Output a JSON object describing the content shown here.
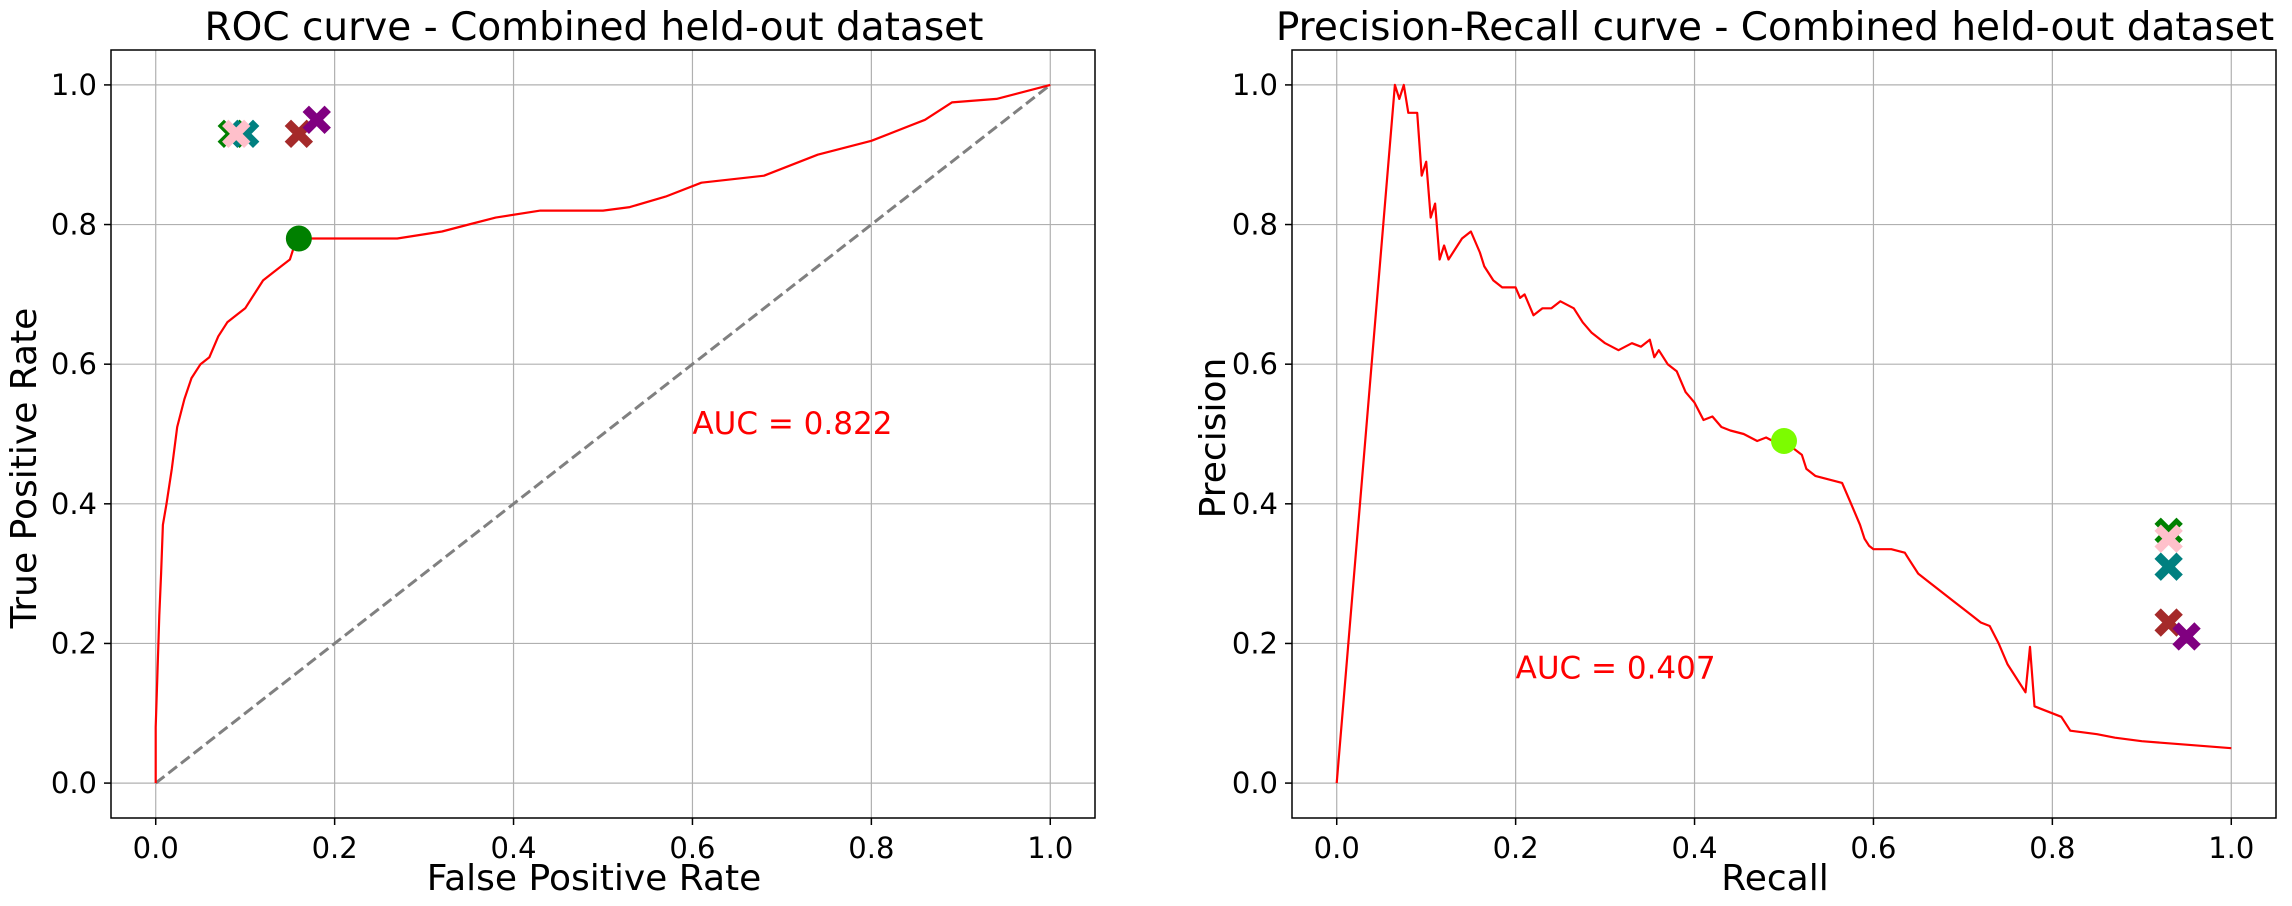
{
  "chart_data": [
    {
      "type": "line",
      "title": "ROC curve - Combined held-out dataset",
      "xlabel": "False Positive Rate",
      "ylabel": "True Positive Rate",
      "xlim": [
        -0.05,
        1.05
      ],
      "ylim": [
        -0.05,
        1.05
      ],
      "xticks": [
        0.0,
        0.2,
        0.4,
        0.6,
        0.8,
        1.0
      ],
      "yticks": [
        0.0,
        0.2,
        0.4,
        0.6,
        0.8,
        1.0
      ],
      "tick_labels": [
        "0.0",
        "0.2",
        "0.4",
        "0.6",
        "0.8",
        "1.0"
      ],
      "grid": true,
      "curve_color": "#ff0000",
      "curve": [
        [
          0.0,
          0.0
        ],
        [
          0.0,
          0.08
        ],
        [
          0.002,
          0.16
        ],
        [
          0.004,
          0.24
        ],
        [
          0.006,
          0.3
        ],
        [
          0.008,
          0.37
        ],
        [
          0.012,
          0.4
        ],
        [
          0.018,
          0.45
        ],
        [
          0.024,
          0.51
        ],
        [
          0.032,
          0.55
        ],
        [
          0.04,
          0.58
        ],
        [
          0.05,
          0.6
        ],
        [
          0.06,
          0.61
        ],
        [
          0.07,
          0.64
        ],
        [
          0.08,
          0.66
        ],
        [
          0.09,
          0.67
        ],
        [
          0.1,
          0.68
        ],
        [
          0.11,
          0.7
        ],
        [
          0.12,
          0.72
        ],
        [
          0.13,
          0.73
        ],
        [
          0.14,
          0.74
        ],
        [
          0.15,
          0.75
        ],
        [
          0.155,
          0.77
        ],
        [
          0.16,
          0.78
        ],
        [
          0.2,
          0.78
        ],
        [
          0.27,
          0.78
        ],
        [
          0.32,
          0.79
        ],
        [
          0.35,
          0.8
        ],
        [
          0.38,
          0.81
        ],
        [
          0.43,
          0.82
        ],
        [
          0.5,
          0.82
        ],
        [
          0.53,
          0.825
        ],
        [
          0.57,
          0.84
        ],
        [
          0.61,
          0.86
        ],
        [
          0.68,
          0.87
        ],
        [
          0.74,
          0.9
        ],
        [
          0.8,
          0.92
        ],
        [
          0.86,
          0.95
        ],
        [
          0.89,
          0.975
        ],
        [
          0.94,
          0.98
        ],
        [
          1.0,
          1.0
        ]
      ],
      "diagonal": {
        "points": [
          [
            0,
            0
          ],
          [
            1,
            1
          ]
        ],
        "color": "#808080",
        "style": "dashed"
      },
      "threshold_point": {
        "x": 0.16,
        "y": 0.78,
        "color": "#008000"
      },
      "markers": [
        {
          "x": 0.085,
          "y": 0.93,
          "color": "#008000"
        },
        {
          "x": 0.1,
          "y": 0.93,
          "color": "#008080"
        },
        {
          "x": 0.09,
          "y": 0.93,
          "color": "#ffc0cb"
        },
        {
          "x": 0.16,
          "y": 0.93,
          "color": "#a52a2a"
        },
        {
          "x": 0.18,
          "y": 0.95,
          "color": "#800080"
        }
      ],
      "annotation": {
        "text": "AUC = 0.822",
        "x": 0.6,
        "y": 0.5,
        "color": "#ff0000"
      }
    },
    {
      "type": "line",
      "title": "Precision-Recall curve - Combined held-out dataset",
      "xlabel": "Recall",
      "ylabel": "Precision",
      "xlim": [
        -0.05,
        1.05
      ],
      "ylim": [
        -0.05,
        1.05
      ],
      "xticks": [
        0.0,
        0.2,
        0.4,
        0.6,
        0.8,
        1.0
      ],
      "yticks": [
        0.0,
        0.2,
        0.4,
        0.6,
        0.8,
        1.0
      ],
      "tick_labels": [
        "0.0",
        "0.2",
        "0.4",
        "0.6",
        "0.8",
        "1.0"
      ],
      "grid": true,
      "curve_color": "#ff0000",
      "curve": [
        [
          0.0,
          0.0
        ],
        [
          0.065,
          1.0
        ],
        [
          0.07,
          0.98
        ],
        [
          0.075,
          1.0
        ],
        [
          0.08,
          0.96
        ],
        [
          0.09,
          0.96
        ],
        [
          0.095,
          0.87
        ],
        [
          0.1,
          0.89
        ],
        [
          0.105,
          0.81
        ],
        [
          0.11,
          0.83
        ],
        [
          0.115,
          0.75
        ],
        [
          0.12,
          0.77
        ],
        [
          0.125,
          0.75
        ],
        [
          0.135,
          0.77
        ],
        [
          0.14,
          0.78
        ],
        [
          0.15,
          0.79
        ],
        [
          0.16,
          0.76
        ],
        [
          0.165,
          0.74
        ],
        [
          0.175,
          0.72
        ],
        [
          0.185,
          0.71
        ],
        [
          0.2,
          0.71
        ],
        [
          0.205,
          0.695
        ],
        [
          0.21,
          0.7
        ],
        [
          0.22,
          0.67
        ],
        [
          0.23,
          0.68
        ],
        [
          0.24,
          0.68
        ],
        [
          0.25,
          0.69
        ],
        [
          0.265,
          0.68
        ],
        [
          0.275,
          0.66
        ],
        [
          0.285,
          0.645
        ],
        [
          0.3,
          0.63
        ],
        [
          0.315,
          0.62
        ],
        [
          0.33,
          0.63
        ],
        [
          0.34,
          0.625
        ],
        [
          0.35,
          0.635
        ],
        [
          0.355,
          0.61
        ],
        [
          0.36,
          0.62
        ],
        [
          0.37,
          0.6
        ],
        [
          0.38,
          0.59
        ],
        [
          0.39,
          0.56
        ],
        [
          0.4,
          0.545
        ],
        [
          0.41,
          0.52
        ],
        [
          0.42,
          0.525
        ],
        [
          0.43,
          0.51
        ],
        [
          0.44,
          0.505
        ],
        [
          0.455,
          0.5
        ],
        [
          0.47,
          0.49
        ],
        [
          0.48,
          0.495
        ],
        [
          0.495,
          0.485
        ],
        [
          0.5,
          0.49
        ],
        [
          0.51,
          0.48
        ],
        [
          0.52,
          0.47
        ],
        [
          0.525,
          0.45
        ],
        [
          0.535,
          0.44
        ],
        [
          0.55,
          0.435
        ],
        [
          0.565,
          0.43
        ],
        [
          0.575,
          0.4
        ],
        [
          0.585,
          0.37
        ],
        [
          0.59,
          0.35
        ],
        [
          0.595,
          0.34
        ],
        [
          0.6,
          0.335
        ],
        [
          0.62,
          0.335
        ],
        [
          0.635,
          0.33
        ],
        [
          0.64,
          0.32
        ],
        [
          0.65,
          0.3
        ],
        [
          0.66,
          0.29
        ],
        [
          0.67,
          0.28
        ],
        [
          0.69,
          0.26
        ],
        [
          0.7,
          0.25
        ],
        [
          0.71,
          0.24
        ],
        [
          0.72,
          0.23
        ],
        [
          0.73,
          0.225
        ],
        [
          0.74,
          0.2
        ],
        [
          0.75,
          0.17
        ],
        [
          0.77,
          0.13
        ],
        [
          0.775,
          0.195
        ],
        [
          0.78,
          0.11
        ],
        [
          0.79,
          0.105
        ],
        [
          0.8,
          0.1
        ],
        [
          0.81,
          0.095
        ],
        [
          0.82,
          0.075
        ],
        [
          0.85,
          0.07
        ],
        [
          0.87,
          0.065
        ],
        [
          0.9,
          0.06
        ],
        [
          0.95,
          0.055
        ],
        [
          1.0,
          0.05
        ]
      ],
      "threshold_point": {
        "x": 0.5,
        "y": 0.49,
        "color": "#7cfc00"
      },
      "markers": [
        {
          "x": 0.93,
          "y": 0.36,
          "color": "#008000"
        },
        {
          "x": 0.93,
          "y": 0.35,
          "color": "#ffc0cb"
        },
        {
          "x": 0.93,
          "y": 0.31,
          "color": "#008080"
        },
        {
          "x": 0.93,
          "y": 0.23,
          "color": "#a52a2a"
        },
        {
          "x": 0.95,
          "y": 0.21,
          "color": "#800080"
        }
      ],
      "annotation": {
        "text": "AUC = 0.407",
        "x": 0.2,
        "y": 0.15,
        "color": "#ff0000"
      }
    }
  ]
}
